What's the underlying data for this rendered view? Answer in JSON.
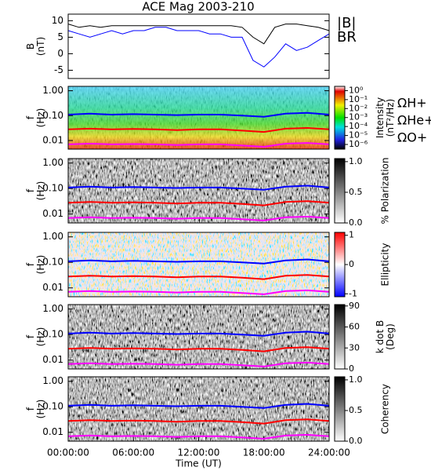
{
  "chart_data": [
    {
      "type": "line",
      "title": "ACE Mag 2003-210",
      "ylabel": [
        "B",
        "(nT)"
      ],
      "legend": "right",
      "x": [
        0,
        1,
        2,
        3,
        4,
        5,
        6,
        7,
        8,
        9,
        10,
        11,
        12,
        13,
        14,
        15,
        16,
        17,
        18,
        19,
        20,
        21,
        22,
        23,
        24
      ],
      "xlim": [
        0,
        24
      ],
      "ylim": [
        -7.5,
        12
      ],
      "yticks": [
        -5,
        0,
        5,
        10
      ],
      "series": [
        {
          "name": "|B|",
          "color": "#000000",
          "values": [
            9,
            8,
            8.5,
            8,
            8.5,
            8.5,
            8.5,
            8.5,
            8.5,
            8.5,
            8.5,
            8.5,
            8.5,
            8.5,
            8.5,
            8.5,
            8,
            5,
            3,
            8,
            9,
            9,
            8.5,
            8,
            7
          ]
        },
        {
          "name": "BR",
          "color": "#0000ff",
          "values": [
            7,
            6,
            5,
            6,
            7,
            6,
            7,
            7,
            8,
            8,
            7,
            7,
            7,
            6,
            6,
            5,
            5,
            -2,
            -4,
            -1,
            3,
            1,
            2,
            4,
            6
          ]
        }
      ]
    },
    {
      "type": "spectrogram",
      "ylabel": [
        "f",
        "(Hz)"
      ],
      "ylog": true,
      "legend": "right",
      "palette": "rainbow",
      "x": [
        0,
        2,
        4,
        6,
        8,
        10,
        12,
        14,
        16,
        18,
        20,
        22,
        24
      ],
      "xlim": [
        0,
        24
      ],
      "ylim": [
        0.0045,
        1.5
      ],
      "yticks": [
        {
          "value": 1,
          "label": "1.00"
        },
        {
          "value": 0.1,
          "label": "0.10"
        },
        {
          "value": 0.01,
          "label": "0.01"
        }
      ],
      "clabel": [
        "Intensity",
        "(nT²/Hz)"
      ],
      "clog": true,
      "clim": [
        3e-07,
        3
      ],
      "cticks": [
        {
          "value": 1,
          "label": "10⁰"
        },
        {
          "value": 0.1,
          "label": "10⁻¹"
        },
        {
          "value": 0.01,
          "label": "10⁻²"
        },
        {
          "value": 0.001,
          "label": "10⁻³"
        },
        {
          "value": 0.0001,
          "label": "10⁻⁴"
        },
        {
          "value": 1e-05,
          "label": "10⁻⁵"
        },
        {
          "value": 1e-06,
          "label": "10⁻⁶"
        }
      ],
      "series": [
        {
          "name": "ΩH+",
          "color": "#0000ff",
          "values": [
            0.11,
            0.12,
            0.11,
            0.115,
            0.11,
            0.105,
            0.11,
            0.11,
            0.1,
            0.09,
            0.12,
            0.13,
            0.11
          ]
        },
        {
          "name": "ΩHe+",
          "color": "#ff0000",
          "values": [
            0.028,
            0.03,
            0.028,
            0.029,
            0.028,
            0.026,
            0.028,
            0.028,
            0.025,
            0.022,
            0.03,
            0.032,
            0.028
          ]
        },
        {
          "name": "ΩO+",
          "color": "#ff00ff",
          "values": [
            0.007,
            0.0075,
            0.007,
            0.0072,
            0.007,
            0.0066,
            0.007,
            0.007,
            0.0063,
            0.0056,
            0.0075,
            0.008,
            0.007
          ]
        }
      ]
    },
    {
      "type": "spectrogram",
      "ylabel": [
        "f",
        "(Hz)"
      ],
      "ylog": true,
      "palette": "gray",
      "x": [
        0,
        2,
        4,
        6,
        8,
        10,
        12,
        14,
        16,
        18,
        20,
        22,
        24
      ],
      "xlim": [
        0,
        24
      ],
      "ylim": [
        0.0045,
        1.5
      ],
      "yticks": [
        {
          "value": 1,
          "label": "1.00"
        },
        {
          "value": 0.1,
          "label": "0.10"
        },
        {
          "value": 0.01,
          "label": "0.01"
        }
      ],
      "clabel": [
        "% Polarization"
      ],
      "clim": [
        0,
        1.05
      ],
      "cticks": [
        {
          "value": 1,
          "label": "1.0"
        },
        0.5,
        {
          "value": 0,
          "label": "0.0"
        }
      ],
      "series": [
        {
          "name": "ΩH+",
          "color": "#0000ff",
          "values": [
            0.11,
            0.12,
            0.11,
            0.115,
            0.11,
            0.105,
            0.11,
            0.11,
            0.1,
            0.09,
            0.12,
            0.13,
            0.11
          ]
        },
        {
          "name": "ΩHe+",
          "color": "#ff0000",
          "values": [
            0.028,
            0.03,
            0.028,
            0.029,
            0.028,
            0.026,
            0.028,
            0.028,
            0.025,
            0.022,
            0.03,
            0.032,
            0.028
          ]
        },
        {
          "name": "ΩO+",
          "color": "#ff00ff",
          "values": [
            0.007,
            0.0075,
            0.007,
            0.0072,
            0.007,
            0.0066,
            0.007,
            0.007,
            0.0063,
            0.0056,
            0.0075,
            0.008,
            0.007
          ]
        }
      ]
    },
    {
      "type": "spectrogram",
      "ylabel": [
        "f",
        "(Hz)"
      ],
      "ylog": true,
      "palette": "bwr",
      "x": [
        0,
        2,
        4,
        6,
        8,
        10,
        12,
        14,
        16,
        18,
        20,
        22,
        24
      ],
      "xlim": [
        0,
        24
      ],
      "ylim": [
        0.0045,
        1.5
      ],
      "yticks": [
        {
          "value": 1,
          "label": "1.00"
        },
        {
          "value": 0.1,
          "label": "0.10"
        },
        {
          "value": 0.01,
          "label": "0.01"
        }
      ],
      "clabel": [
        "Ellipticity"
      ],
      "clim": [
        -1.1,
        1.1
      ],
      "cticks": [
        1,
        0,
        -1
      ],
      "series": [
        {
          "name": "ΩH+",
          "color": "#0000ff",
          "values": [
            0.11,
            0.12,
            0.11,
            0.115,
            0.11,
            0.105,
            0.11,
            0.11,
            0.1,
            0.09,
            0.12,
            0.13,
            0.11
          ]
        },
        {
          "name": "ΩHe+",
          "color": "#ff0000",
          "values": [
            0.028,
            0.03,
            0.028,
            0.029,
            0.028,
            0.026,
            0.028,
            0.028,
            0.025,
            0.022,
            0.03,
            0.032,
            0.028
          ]
        },
        {
          "name": "ΩO+",
          "color": "#ff00ff",
          "values": [
            0.007,
            0.0075,
            0.007,
            0.0072,
            0.007,
            0.0066,
            0.007,
            0.007,
            0.0063,
            0.0056,
            0.0075,
            0.008,
            0.007
          ]
        }
      ]
    },
    {
      "type": "spectrogram",
      "ylabel": [
        "f",
        "(Hz)"
      ],
      "ylog": true,
      "palette": "gray",
      "x": [
        0,
        2,
        4,
        6,
        8,
        10,
        12,
        14,
        16,
        18,
        20,
        22,
        24
      ],
      "xlim": [
        0,
        24
      ],
      "ylim": [
        0.0045,
        1.5
      ],
      "yticks": [
        {
          "value": 1,
          "label": "1.00"
        },
        {
          "value": 0.1,
          "label": "0.10"
        },
        {
          "value": 0.01,
          "label": "0.01"
        }
      ],
      "clabel": [
        "k dot B",
        "(Deg)"
      ],
      "clim": [
        0,
        92
      ],
      "cticks": [
        90,
        60,
        30,
        0
      ],
      "series": [
        {
          "name": "ΩH+",
          "color": "#0000ff",
          "values": [
            0.11,
            0.12,
            0.11,
            0.115,
            0.11,
            0.105,
            0.11,
            0.11,
            0.1,
            0.09,
            0.12,
            0.13,
            0.11
          ]
        },
        {
          "name": "ΩHe+",
          "color": "#ff0000",
          "values": [
            0.028,
            0.03,
            0.028,
            0.029,
            0.028,
            0.026,
            0.028,
            0.028,
            0.025,
            0.022,
            0.03,
            0.032,
            0.028
          ]
        },
        {
          "name": "ΩO+",
          "color": "#ff00ff",
          "values": [
            0.007,
            0.0075,
            0.007,
            0.0072,
            0.007,
            0.0066,
            0.007,
            0.007,
            0.0063,
            0.0056,
            0.0075,
            0.008,
            0.007
          ]
        }
      ]
    },
    {
      "type": "spectrogram",
      "ylabel": [
        "f",
        "(Hz)"
      ],
      "ylog": true,
      "palette": "gray",
      "x": [
        0,
        2,
        4,
        6,
        8,
        10,
        12,
        14,
        16,
        18,
        20,
        22,
        24
      ],
      "xlim": [
        0,
        24
      ],
      "ylim": [
        0.0045,
        1.5
      ],
      "yticks": [
        {
          "value": 1,
          "label": "1.00"
        },
        {
          "value": 0.1,
          "label": "0.10"
        },
        {
          "value": 0.01,
          "label": "0.01"
        }
      ],
      "clabel": [
        "Coherency"
      ],
      "clim": [
        0,
        1.05
      ],
      "cticks": [
        {
          "value": 1,
          "label": "1.0"
        },
        0.5,
        {
          "value": 0,
          "label": "0.0"
        }
      ],
      "xlabel": "Time (UT)",
      "xticks": [
        {
          "value": 0,
          "label": "00:00:00"
        },
        {
          "value": 6,
          "label": "06:00:00"
        },
        {
          "value": 12,
          "label": "12:00:00"
        },
        {
          "value": 18,
          "label": "18:00:00"
        },
        {
          "value": 24,
          "label": "24:00:00"
        }
      ],
      "series": [
        {
          "name": "ΩH+",
          "color": "#0000ff",
          "values": [
            0.11,
            0.12,
            0.11,
            0.115,
            0.11,
            0.105,
            0.11,
            0.11,
            0.1,
            0.09,
            0.12,
            0.13,
            0.11
          ]
        },
        {
          "name": "ΩHe+",
          "color": "#ff0000",
          "values": [
            0.028,
            0.03,
            0.028,
            0.029,
            0.028,
            0.026,
            0.028,
            0.028,
            0.025,
            0.022,
            0.03,
            0.032,
            0.028
          ]
        },
        {
          "name": "ΩO+",
          "color": "#ff00ff",
          "values": [
            0.007,
            0.0075,
            0.007,
            0.0072,
            0.007,
            0.0066,
            0.007,
            0.007,
            0.0063,
            0.0056,
            0.0075,
            0.008,
            0.007
          ]
        }
      ]
    }
  ]
}
